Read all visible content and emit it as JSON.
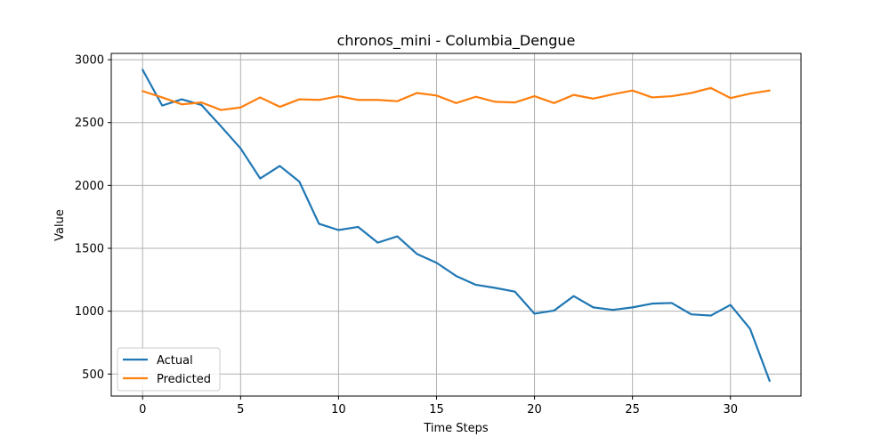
{
  "chart_data": {
    "type": "line",
    "title": "chronos_mini - Columbia_Dengue",
    "xlabel": "Time Steps",
    "ylabel": "Value",
    "xlim": [
      -1.6,
      33.6
    ],
    "ylim": [
      325,
      3050
    ],
    "xticks": [
      0,
      5,
      10,
      15,
      20,
      25,
      30
    ],
    "yticks": [
      500,
      1000,
      1500,
      2000,
      2500,
      3000
    ],
    "grid": true,
    "legend_position": "lower-left",
    "x": [
      0,
      1,
      2,
      3,
      4,
      5,
      6,
      7,
      8,
      9,
      10,
      11,
      12,
      13,
      14,
      15,
      16,
      17,
      18,
      19,
      20,
      21,
      22,
      23,
      24,
      25,
      26,
      27,
      28,
      29,
      30,
      31,
      32
    ],
    "series": [
      {
        "name": "Actual",
        "color": "#1f77b4",
        "values": [
          2920,
          2635,
          2685,
          2640,
          2470,
          2295,
          2055,
          2155,
          2030,
          1695,
          1645,
          1670,
          1545,
          1595,
          1455,
          1385,
          1280,
          1210,
          1185,
          1155,
          980,
          1005,
          1120,
          1030,
          1010,
          1030,
          1060,
          1065,
          975,
          965,
          1050,
          860,
          445
        ]
      },
      {
        "name": "Predicted",
        "color": "#ff7f0e",
        "values": [
          2750,
          2700,
          2645,
          2660,
          2600,
          2620,
          2700,
          2625,
          2685,
          2680,
          2710,
          2680,
          2680,
          2670,
          2735,
          2715,
          2655,
          2705,
          2665,
          2660,
          2710,
          2655,
          2720,
          2690,
          2725,
          2755,
          2700,
          2710,
          2735,
          2775,
          2695,
          2730,
          2755
        ]
      }
    ]
  }
}
